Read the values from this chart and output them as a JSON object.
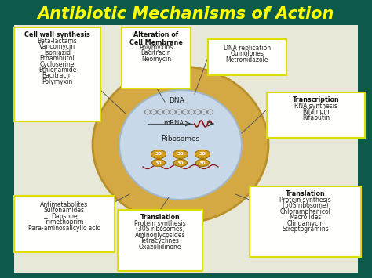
{
  "title": "Antibiotic Mechanisms of Action",
  "title_color": "#FFFF00",
  "bg_color": "#0d5a4a",
  "bg_color2": "#0d5c5c",
  "cell_outer_color": "#D4A843",
  "cell_inner_color": "#C8D8E8",
  "box_bg": "#FFFFFE",
  "box_edge": "#DDDD00",
  "top_left_box": {
    "title": "Cell wall synthesis",
    "lines": [
      "Beta-lactams",
      "Vancomycin",
      "Isoniazid",
      "Ethambutol",
      "Cycloserine",
      "Ethionamide",
      "Bacitracin",
      "Polymyxin"
    ]
  },
  "top_center_box": {
    "title": "Alteration of\nCell Membrane",
    "lines": [
      "Polymyxins",
      "Bacitracin",
      "Neomycin"
    ]
  },
  "top_right_box": {
    "title": "",
    "lines": [
      "DNA replication",
      "Quinolones",
      "Metronidazole"
    ]
  },
  "right_top_box": {
    "title": "Transcription",
    "lines": [
      "RNA synthesis",
      "Rifampin",
      "Rifabutin"
    ]
  },
  "bottom_left_box": {
    "title": "",
    "lines": [
      "Antimetabolites",
      "Sulfonamides",
      "Dapsone",
      "Trimethoprim",
      "Para-aminosalicylic acid"
    ]
  },
  "bottom_center_box": {
    "title": "Translation",
    "lines": [
      "Protein synthesis",
      "(30S ribosomes)",
      "Aminoglycosides",
      "Tetracyclines",
      "Oxazolidinone"
    ]
  },
  "bottom_right_box": {
    "title": "Translation",
    "lines": [
      "Protein synthesis",
      "(50S ribosome)",
      "Chloramphenicol",
      "Macrolides",
      "Clindamycin",
      "Streptogramins"
    ]
  }
}
